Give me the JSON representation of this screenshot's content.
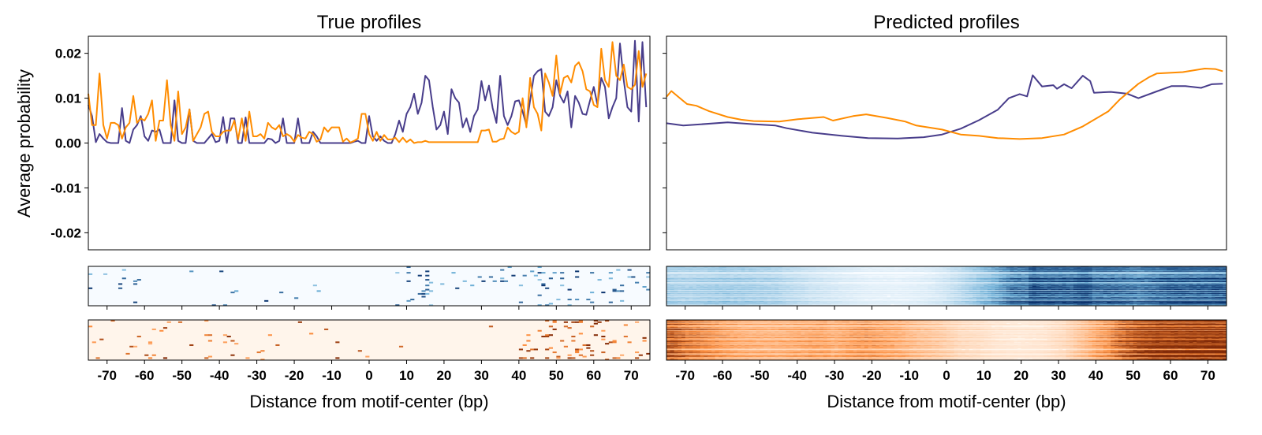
{
  "chart_data": [
    {
      "type": "line",
      "title": "True profiles",
      "xlabel": "Distance from motif-center (bp)",
      "ylabel": "Average probability",
      "xlim": [
        -75,
        75
      ],
      "ylim": [
        -0.0238,
        0.0238
      ],
      "x_ticks": [
        -70,
        -60,
        -50,
        -40,
        -30,
        -20,
        -10,
        0,
        10,
        20,
        30,
        40,
        50,
        60,
        70
      ],
      "x_tick_labels": [
        "-70",
        "-60",
        "-50",
        "-40",
        "-30",
        "-20",
        "-10",
        "0",
        "10",
        "20",
        "30",
        "40",
        "50",
        "60",
        "70"
      ],
      "y_ticks": [
        0.02,
        0.01,
        0.0,
        -0.01,
        -0.02
      ],
      "y_tick_labels": [
        "0.02",
        "0.01",
        "0.00",
        "-0.01",
        "-0.02"
      ],
      "x_start": -75,
      "series": [
        {
          "name": "strand-1",
          "color": "#483d8b",
          "values": [
            0.0085,
            0.006,
            0.0002,
            0.002,
            0.001,
            0.0002,
            0,
            0,
            0,
            0.0078,
            0.0005,
            0,
            0.003,
            0.004,
            0.006,
            0.0015,
            0.0005,
            0.0028,
            0.0025,
            0.003,
            0,
            0,
            0,
            0.0095,
            0.0005,
            0,
            0,
            0.0075,
            0.0005,
            0,
            0,
            0,
            0.001,
            0.002,
            0.0002,
            0.0005,
            0.0058,
            0,
            0.0055,
            0.0055,
            0,
            0,
            0.0057,
            0,
            0,
            0,
            0,
            0,
            0.001,
            0.0008,
            0,
            0.0005,
            0.0055,
            0,
            0,
            0,
            0.0055,
            0,
            0,
            0,
            0.0025,
            0.0015,
            0,
            0,
            0,
            0,
            0,
            0,
            0,
            0,
            0,
            0.0003,
            0.0005,
            0,
            0,
            0.006,
            0.0015,
            0.0005,
            0.0015,
            0.0005,
            0,
            0,
            0.002,
            0.005,
            0.0025,
            0.0065,
            0.008,
            0.011,
            0.0065,
            0.009,
            0.015,
            0.014,
            0.008,
            0.003,
            0.004,
            0.007,
            0.002,
            0.012,
            0.01,
            0.009,
            0.0035,
            0.0055,
            0.0025,
            0.006,
            0.0075,
            0.0138,
            0.0095,
            0.0128,
            0.0078,
            0.0045,
            0.015,
            0.006,
            0.004,
            0.006,
            0.0093,
            0.0095,
            0.007,
            0.004,
            0.0095,
            0.015,
            0.016,
            0.0165,
            0.007,
            0.006,
            0.008,
            0.014,
            0.0105,
            0.009,
            0.0115,
            0.0035,
            0.0105,
            0.009,
            0.0065,
            0.0063,
            0.0095,
            0.0125,
            0.0085,
            0.0145,
            0.0125,
            0.0055,
            0.008,
            0.01,
            0.0222,
            0.014,
            0.008,
            0.007,
            0.0228,
            0.0048,
            0.0225,
            0.008
          ]
        },
        {
          "name": "strand-2",
          "color": "#ff8c00",
          "values": [
            0.011,
            0.004,
            0.004,
            0.0155,
            0.004,
            0.001,
            0.0045,
            0.0045,
            0.004,
            0.001,
            0.0035,
            0.0045,
            0.0105,
            0.0045,
            0.0055,
            0.005,
            0.0065,
            0.0095,
            0.0005,
            0.005,
            0.005,
            0.014,
            0.004,
            0.0005,
            0.0115,
            0.002,
            0.0035,
            0.0075,
            0.0005,
            0.002,
            0.0035,
            0.0065,
            0.007,
            0.0025,
            0.0015,
            0.0015,
            0.0025,
            0.0028,
            0.0028,
            0.005,
            0.0008,
            0.0055,
            0.0005,
            0.007,
            0.0015,
            0.0015,
            0.002,
            0.001,
            0.0045,
            0.0035,
            0.003,
            0.004,
            0.0015,
            0.002,
            0.0015,
            0.0003,
            0.0018,
            0.0012,
            0.001,
            0.0025,
            0.002,
            0.0003,
            0.0008,
            0.0035,
            0.0025,
            0.0035,
            0.0035,
            0.0035,
            0.0003,
            0.001,
            0.0001,
            0.0005,
            0.001,
            0.0065,
            0.0065,
            0.002,
            0.0005,
            0.0025,
            0.0005,
            0.0018,
            0.0008,
            0.0008,
            0.0012,
            0.0002,
            0.0012,
            0.0002,
            0.0008,
            0,
            0.0002,
            0.0002,
            0.0005,
            0.0002,
            0.0002,
            0.0002,
            0.0002,
            0.0002,
            0.0002,
            0.0002,
            0.0002,
            0.0002,
            0.0002,
            0.0002,
            0.0002,
            0.0002,
            0.0002,
            0.0028,
            0.0028,
            0.003,
            0.0003,
            0.0003,
            0.0008,
            0.001,
            0.0035,
            0.0025,
            0.002,
            0.0025,
            0.01,
            0.0035,
            0.0145,
            0.008,
            0.0065,
            0.0028,
            0.0155,
            0.0135,
            0.0105,
            0.0195,
            0.011,
            0.0145,
            0.015,
            0.0135,
            0.0172,
            0.018,
            0.016,
            0.012,
            0.0115,
            0.0085,
            0.008,
            0.021,
            0.014,
            0.0125,
            0.0225,
            0.015,
            0.014,
            0.0175,
            0.0125,
            0.012,
            0.013,
            0.0205,
            0.0125,
            0.0155
          ]
        }
      ],
      "heatmaps": [
        {
          "name": "strand-1-heatmap",
          "colormap": [
            "#f7fbff",
            "#6baed6",
            "#08306b"
          ],
          "rows": 28,
          "style": "sparse",
          "series_index": 0
        },
        {
          "name": "strand-2-heatmap",
          "colormap": [
            "#fff5eb",
            "#fd8d3c",
            "#7f2704"
          ],
          "rows": 28,
          "style": "sparse",
          "series_index": 1
        }
      ]
    },
    {
      "type": "line",
      "title": "Predicted profiles",
      "xlabel": "Distance from motif-center (bp)",
      "ylabel": "",
      "xlim": [
        -75,
        75
      ],
      "ylim": [
        -0.0238,
        0.0238
      ],
      "x_ticks": [
        -70,
        -60,
        -50,
        -40,
        -30,
        -20,
        -10,
        0,
        10,
        20,
        30,
        40,
        50,
        60,
        70
      ],
      "x_tick_labels": [
        "-70",
        "-60",
        "-50",
        "-40",
        "-30",
        "-20",
        "-10",
        "0",
        "10",
        "20",
        "30",
        "40",
        "50",
        "60",
        "70"
      ],
      "y_ticks": [
        0.02,
        0.01,
        0.0,
        -0.01,
        -0.02
      ],
      "y_tick_labels": [],
      "series": [
        {
          "name": "strand-1",
          "color": "#483d8b",
          "x": [
            -75,
            -70.5,
            -58.6,
            -51.7,
            -45.8,
            -42.8,
            -35.9,
            -27.9,
            -21,
            -13.1,
            -6.1,
            -1.2,
            3.8,
            8.7,
            13.7,
            16.7,
            19.6,
            21.6,
            23.1,
            25.6,
            28.6,
            29.6,
            31.5,
            33.5,
            36.5,
            38.5,
            39.5,
            44,
            48.4,
            51.4,
            56.3,
            60.3,
            64,
            68.2,
            71,
            74
          ],
          "y": [
            0.0044,
            0.0039,
            0.0046,
            0.0042,
            0.0039,
            0.0033,
            0.0023,
            0.0016,
            0.0011,
            0.001,
            0.0013,
            0.0019,
            0.0032,
            0.0051,
            0.0074,
            0.01,
            0.0109,
            0.0104,
            0.0151,
            0.0126,
            0.0129,
            0.0121,
            0.0131,
            0.0122,
            0.015,
            0.0138,
            0.0112,
            0.0114,
            0.011,
            0.01,
            0.0115,
            0.0127,
            0.0127,
            0.0123,
            0.0131,
            0.0132
          ]
        },
        {
          "name": "strand-2",
          "color": "#ff8c00",
          "x": [
            -75,
            -73.7,
            -72,
            -69.5,
            -67,
            -63.6,
            -58.6,
            -55,
            -51.7,
            -44.8,
            -39.8,
            -32.9,
            -30.4,
            -25,
            -21.5,
            -16,
            -11.1,
            -8.1,
            -1.2,
            3.8,
            8.7,
            13.7,
            19.6,
            25.6,
            31.5,
            36.5,
            43.4,
            46.4,
            51.4,
            54.3,
            56.3,
            63.3,
            69.2,
            72,
            74
          ],
          "y": [
            0.0103,
            0.0116,
            0.0104,
            0.0087,
            0.0083,
            0.0071,
            0.0058,
            0.0052,
            0.0049,
            0.0048,
            0.0053,
            0.0058,
            0.005,
            0.006,
            0.0064,
            0.0056,
            0.0048,
            0.0039,
            0.003,
            0.0019,
            0.0016,
            0.0011,
            0.0009,
            0.0011,
            0.0019,
            0.0037,
            0.0071,
            0.0097,
            0.0132,
            0.0147,
            0.0155,
            0.0158,
            0.0166,
            0.0165,
            0.016
          ]
        }
      ],
      "heatmaps": [
        {
          "name": "strand-1-heatmap",
          "colormap": [
            "#f7fbff",
            "#6baed6",
            "#08306b"
          ],
          "rows": 60,
          "style": "dense",
          "series_index": 0
        },
        {
          "name": "strand-2-heatmap",
          "colormap": [
            "#fff5eb",
            "#fd8d3c",
            "#7f2704"
          ],
          "rows": 60,
          "style": "dense",
          "series_index": 1
        }
      ]
    }
  ]
}
